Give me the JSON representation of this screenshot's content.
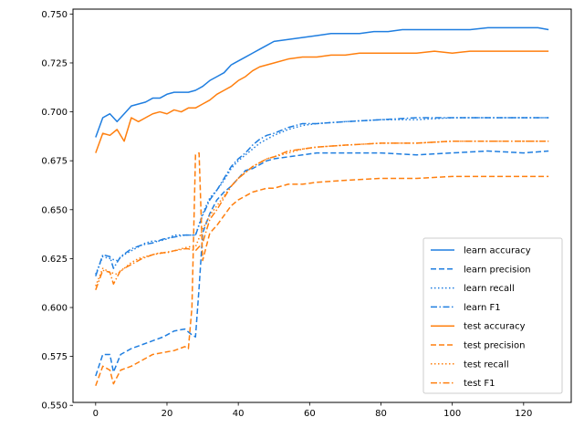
{
  "chart_data": {
    "type": "line",
    "title": "",
    "xlabel": "",
    "ylabel": "",
    "xlim": [
      -6.35,
      133.35
    ],
    "ylim": [
      0.5515,
      0.7525
    ],
    "xticks": [
      0,
      20,
      40,
      60,
      80,
      100,
      120
    ],
    "xtick_labels": [
      "0",
      "20",
      "40",
      "60",
      "80",
      "100",
      "120"
    ],
    "yticks": [
      0.55,
      0.575,
      0.6,
      0.625,
      0.65,
      0.675,
      0.7,
      0.725,
      0.75
    ],
    "ytick_labels": [
      "0.550",
      "0.575",
      "0.600",
      "0.625",
      "0.650",
      "0.675",
      "0.700",
      "0.725",
      "0.750"
    ],
    "grid": false,
    "legend": {
      "position": "lower-right"
    },
    "colors": {
      "learn": "#1f7ee0",
      "test": "#ff7f0e"
    },
    "series": [
      {
        "name": "learn accuracy",
        "color": "#1f7ee0",
        "linestyle": "solid",
        "points": [
          [
            0,
            0.687
          ],
          [
            2,
            0.697
          ],
          [
            4,
            0.699
          ],
          [
            6,
            0.695
          ],
          [
            8,
            0.699
          ],
          [
            10,
            0.703
          ],
          [
            12,
            0.704
          ],
          [
            14,
            0.705
          ],
          [
            16,
            0.707
          ],
          [
            18,
            0.707
          ],
          [
            20,
            0.709
          ],
          [
            22,
            0.71
          ],
          [
            24,
            0.71
          ],
          [
            26,
            0.71
          ],
          [
            28,
            0.711
          ],
          [
            30,
            0.713
          ],
          [
            32,
            0.716
          ],
          [
            34,
            0.718
          ],
          [
            36,
            0.72
          ],
          [
            38,
            0.724
          ],
          [
            40,
            0.726
          ],
          [
            42,
            0.728
          ],
          [
            44,
            0.73
          ],
          [
            46,
            0.732
          ],
          [
            48,
            0.734
          ],
          [
            50,
            0.736
          ],
          [
            54,
            0.737
          ],
          [
            58,
            0.738
          ],
          [
            62,
            0.739
          ],
          [
            66,
            0.74
          ],
          [
            70,
            0.74
          ],
          [
            74,
            0.74
          ],
          [
            78,
            0.741
          ],
          [
            82,
            0.741
          ],
          [
            86,
            0.742
          ],
          [
            90,
            0.742
          ],
          [
            95,
            0.742
          ],
          [
            100,
            0.742
          ],
          [
            105,
            0.742
          ],
          [
            110,
            0.743
          ],
          [
            115,
            0.743
          ],
          [
            120,
            0.743
          ],
          [
            124,
            0.743
          ],
          [
            127,
            0.742
          ]
        ]
      },
      {
        "name": "learn precision",
        "color": "#1f7ee0",
        "linestyle": "dashed",
        "points": [
          [
            0,
            0.565
          ],
          [
            2,
            0.576
          ],
          [
            4,
            0.576
          ],
          [
            5,
            0.567
          ],
          [
            7,
            0.576
          ],
          [
            10,
            0.579
          ],
          [
            13,
            0.581
          ],
          [
            16,
            0.583
          ],
          [
            19,
            0.585
          ],
          [
            22,
            0.588
          ],
          [
            25,
            0.589
          ],
          [
            27,
            0.586
          ],
          [
            28,
            0.585
          ],
          [
            29,
            0.61
          ],
          [
            30,
            0.638
          ],
          [
            32,
            0.648
          ],
          [
            34,
            0.655
          ],
          [
            36,
            0.659
          ],
          [
            38,
            0.662
          ],
          [
            40,
            0.666
          ],
          [
            42,
            0.67
          ],
          [
            44,
            0.671
          ],
          [
            46,
            0.673
          ],
          [
            48,
            0.675
          ],
          [
            50,
            0.676
          ],
          [
            54,
            0.677
          ],
          [
            58,
            0.678
          ],
          [
            62,
            0.679
          ],
          [
            70,
            0.679
          ],
          [
            80,
            0.679
          ],
          [
            90,
            0.678
          ],
          [
            100,
            0.679
          ],
          [
            110,
            0.68
          ],
          [
            120,
            0.679
          ],
          [
            127,
            0.68
          ]
        ]
      },
      {
        "name": "learn recall",
        "color": "#1f7ee0",
        "linestyle": "dotted",
        "points": [
          [
            0,
            0.617
          ],
          [
            2,
            0.626
          ],
          [
            4,
            0.625
          ],
          [
            6,
            0.624
          ],
          [
            8,
            0.627
          ],
          [
            10,
            0.629
          ],
          [
            12,
            0.631
          ],
          [
            14,
            0.633
          ],
          [
            16,
            0.634
          ],
          [
            18,
            0.634
          ],
          [
            20,
            0.635
          ],
          [
            22,
            0.637
          ],
          [
            24,
            0.637
          ],
          [
            26,
            0.637
          ],
          [
            28,
            0.637
          ],
          [
            30,
            0.648
          ],
          [
            32,
            0.656
          ],
          [
            34,
            0.66
          ],
          [
            36,
            0.665
          ],
          [
            38,
            0.671
          ],
          [
            40,
            0.675
          ],
          [
            42,
            0.678
          ],
          [
            44,
            0.681
          ],
          [
            46,
            0.684
          ],
          [
            48,
            0.686
          ],
          [
            50,
            0.688
          ],
          [
            54,
            0.691
          ],
          [
            58,
            0.693
          ],
          [
            62,
            0.694
          ],
          [
            70,
            0.695
          ],
          [
            80,
            0.696
          ],
          [
            90,
            0.696
          ],
          [
            100,
            0.697
          ],
          [
            110,
            0.697
          ],
          [
            120,
            0.697
          ],
          [
            127,
            0.697
          ]
        ]
      },
      {
        "name": "learn F1",
        "color": "#1f7ee0",
        "linestyle": "dashdot",
        "points": [
          [
            0,
            0.616
          ],
          [
            2,
            0.627
          ],
          [
            4,
            0.626
          ],
          [
            5,
            0.62
          ],
          [
            7,
            0.626
          ],
          [
            10,
            0.63
          ],
          [
            13,
            0.632
          ],
          [
            16,
            0.633
          ],
          [
            19,
            0.635
          ],
          [
            22,
            0.636
          ],
          [
            25,
            0.637
          ],
          [
            27,
            0.637
          ],
          [
            28,
            0.637
          ],
          [
            30,
            0.647
          ],
          [
            32,
            0.655
          ],
          [
            34,
            0.66
          ],
          [
            36,
            0.666
          ],
          [
            38,
            0.672
          ],
          [
            40,
            0.676
          ],
          [
            42,
            0.679
          ],
          [
            44,
            0.683
          ],
          [
            46,
            0.686
          ],
          [
            48,
            0.688
          ],
          [
            50,
            0.689
          ],
          [
            54,
            0.692
          ],
          [
            58,
            0.694
          ],
          [
            62,
            0.694
          ],
          [
            70,
            0.695
          ],
          [
            80,
            0.696
          ],
          [
            90,
            0.697
          ],
          [
            100,
            0.697
          ],
          [
            110,
            0.697
          ],
          [
            120,
            0.697
          ],
          [
            127,
            0.697
          ]
        ]
      },
      {
        "name": "test accuracy",
        "color": "#ff7f0e",
        "linestyle": "solid",
        "points": [
          [
            0,
            0.679
          ],
          [
            2,
            0.689
          ],
          [
            4,
            0.688
          ],
          [
            6,
            0.691
          ],
          [
            8,
            0.685
          ],
          [
            10,
            0.697
          ],
          [
            12,
            0.695
          ],
          [
            14,
            0.697
          ],
          [
            16,
            0.699
          ],
          [
            18,
            0.7
          ],
          [
            20,
            0.699
          ],
          [
            22,
            0.701
          ],
          [
            24,
            0.7
          ],
          [
            26,
            0.702
          ],
          [
            28,
            0.702
          ],
          [
            30,
            0.704
          ],
          [
            32,
            0.706
          ],
          [
            34,
            0.709
          ],
          [
            36,
            0.711
          ],
          [
            38,
            0.713
          ],
          [
            40,
            0.716
          ],
          [
            42,
            0.718
          ],
          [
            44,
            0.721
          ],
          [
            46,
            0.723
          ],
          [
            48,
            0.724
          ],
          [
            50,
            0.725
          ],
          [
            54,
            0.727
          ],
          [
            58,
            0.728
          ],
          [
            62,
            0.728
          ],
          [
            66,
            0.729
          ],
          [
            70,
            0.729
          ],
          [
            74,
            0.73
          ],
          [
            78,
            0.73
          ],
          [
            82,
            0.73
          ],
          [
            86,
            0.73
          ],
          [
            90,
            0.73
          ],
          [
            95,
            0.731
          ],
          [
            100,
            0.73
          ],
          [
            105,
            0.731
          ],
          [
            110,
            0.731
          ],
          [
            115,
            0.731
          ],
          [
            120,
            0.731
          ],
          [
            124,
            0.731
          ],
          [
            127,
            0.731
          ]
        ]
      },
      {
        "name": "test precision",
        "color": "#ff7f0e",
        "linestyle": "dashed",
        "points": [
          [
            0,
            0.56
          ],
          [
            2,
            0.57
          ],
          [
            4,
            0.568
          ],
          [
            5,
            0.561
          ],
          [
            7,
            0.568
          ],
          [
            10,
            0.57
          ],
          [
            13,
            0.573
          ],
          [
            16,
            0.576
          ],
          [
            19,
            0.577
          ],
          [
            22,
            0.578
          ],
          [
            25,
            0.58
          ],
          [
            26,
            0.579
          ],
          [
            27,
            0.6
          ],
          [
            28,
            0.678
          ],
          [
            29,
            0.679
          ],
          [
            30,
            0.624
          ],
          [
            32,
            0.638
          ],
          [
            34,
            0.642
          ],
          [
            36,
            0.647
          ],
          [
            38,
            0.652
          ],
          [
            40,
            0.655
          ],
          [
            42,
            0.657
          ],
          [
            44,
            0.659
          ],
          [
            46,
            0.66
          ],
          [
            48,
            0.661
          ],
          [
            50,
            0.661
          ],
          [
            54,
            0.663
          ],
          [
            58,
            0.663
          ],
          [
            62,
            0.664
          ],
          [
            70,
            0.665
          ],
          [
            80,
            0.666
          ],
          [
            90,
            0.666
          ],
          [
            100,
            0.667
          ],
          [
            110,
            0.667
          ],
          [
            120,
            0.667
          ],
          [
            127,
            0.667
          ]
        ]
      },
      {
        "name": "test recall",
        "color": "#ff7f0e",
        "linestyle": "dotted",
        "points": [
          [
            0,
            0.611
          ],
          [
            2,
            0.62
          ],
          [
            4,
            0.618
          ],
          [
            6,
            0.617
          ],
          [
            8,
            0.62
          ],
          [
            10,
            0.623
          ],
          [
            12,
            0.625
          ],
          [
            14,
            0.626
          ],
          [
            16,
            0.627
          ],
          [
            18,
            0.628
          ],
          [
            20,
            0.628
          ],
          [
            22,
            0.629
          ],
          [
            24,
            0.63
          ],
          [
            26,
            0.631
          ],
          [
            28,
            0.631
          ],
          [
            30,
            0.64
          ],
          [
            32,
            0.647
          ],
          [
            34,
            0.652
          ],
          [
            36,
            0.657
          ],
          [
            38,
            0.662
          ],
          [
            40,
            0.666
          ],
          [
            42,
            0.669
          ],
          [
            44,
            0.672
          ],
          [
            46,
            0.674
          ],
          [
            48,
            0.676
          ],
          [
            50,
            0.677
          ],
          [
            54,
            0.679
          ],
          [
            58,
            0.681
          ],
          [
            62,
            0.682
          ],
          [
            70,
            0.683
          ],
          [
            80,
            0.684
          ],
          [
            90,
            0.684
          ],
          [
            100,
            0.685
          ],
          [
            110,
            0.685
          ],
          [
            120,
            0.685
          ],
          [
            127,
            0.685
          ]
        ]
      },
      {
        "name": "test F1",
        "color": "#ff7f0e",
        "linestyle": "dashdot",
        "points": [
          [
            0,
            0.609
          ],
          [
            2,
            0.619
          ],
          [
            4,
            0.618
          ],
          [
            5,
            0.612
          ],
          [
            7,
            0.619
          ],
          [
            10,
            0.622
          ],
          [
            13,
            0.625
          ],
          [
            16,
            0.627
          ],
          [
            19,
            0.628
          ],
          [
            22,
            0.629
          ],
          [
            25,
            0.63
          ],
          [
            26,
            0.63
          ],
          [
            28,
            0.629
          ],
          [
            30,
            0.633
          ],
          [
            32,
            0.645
          ],
          [
            34,
            0.65
          ],
          [
            36,
            0.656
          ],
          [
            38,
            0.662
          ],
          [
            40,
            0.666
          ],
          [
            42,
            0.669
          ],
          [
            44,
            0.672
          ],
          [
            46,
            0.674
          ],
          [
            48,
            0.676
          ],
          [
            50,
            0.677
          ],
          [
            54,
            0.68
          ],
          [
            58,
            0.681
          ],
          [
            62,
            0.682
          ],
          [
            70,
            0.683
          ],
          [
            80,
            0.684
          ],
          [
            90,
            0.684
          ],
          [
            100,
            0.685
          ],
          [
            110,
            0.685
          ],
          [
            120,
            0.685
          ],
          [
            127,
            0.685
          ]
        ]
      }
    ]
  }
}
